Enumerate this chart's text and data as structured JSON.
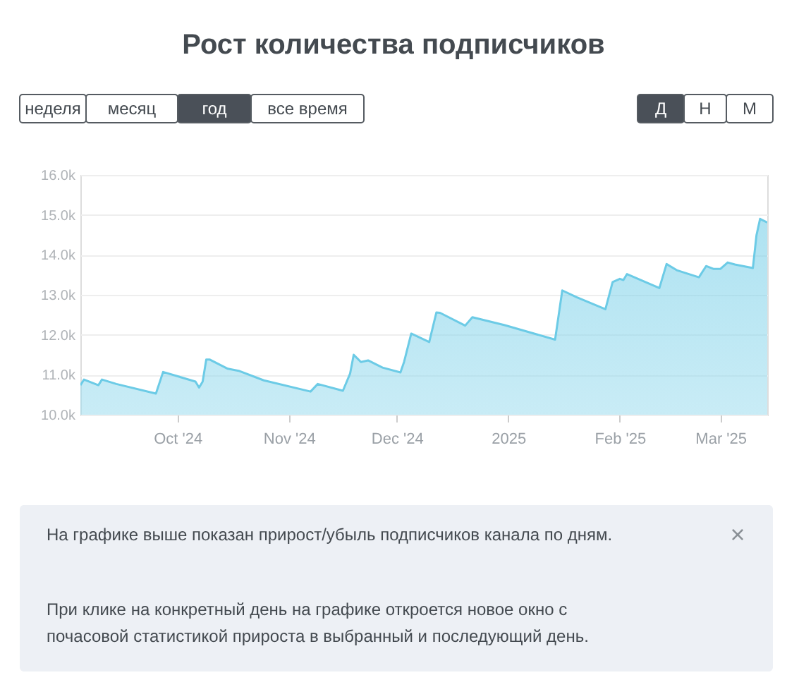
{
  "chart_data": {
    "type": "area",
    "title": "Рост количества подписчиков",
    "x": [
      "2024-09-04",
      "2024-09-05",
      "2024-09-09",
      "2024-09-10",
      "2024-09-14",
      "2024-09-25",
      "2024-09-27",
      "2024-10-06",
      "2024-10-07",
      "2024-10-08",
      "2024-10-09",
      "2024-10-10",
      "2024-10-15",
      "2024-10-18",
      "2024-10-25",
      "2024-11-07",
      "2024-11-09",
      "2024-11-16",
      "2024-11-18",
      "2024-11-19",
      "2024-11-21",
      "2024-11-23",
      "2024-11-27",
      "2024-12-02",
      "2024-12-03",
      "2024-12-05",
      "2024-12-10",
      "2024-12-12",
      "2024-12-13",
      "2024-12-20",
      "2024-12-22",
      "2024-12-31",
      "2025-01-14",
      "2025-01-16",
      "2025-01-20",
      "2025-01-28",
      "2025-01-30",
      "2025-02-01",
      "2025-02-02",
      "2025-02-03",
      "2025-02-12",
      "2025-02-14",
      "2025-02-17",
      "2025-02-23",
      "2025-02-25",
      "2025-02-27",
      "2025-03-01",
      "2025-03-03",
      "2025-03-05",
      "2025-03-10",
      "2025-03-11",
      "2025-03-12",
      "2025-03-14"
    ],
    "series": [
      {
        "color": "#6ccbe6",
        "values": [
          10740,
          10880,
          10740,
          10880,
          10770,
          10530,
          11070,
          10830,
          10680,
          10830,
          11380,
          11380,
          11150,
          11100,
          10860,
          10580,
          10770,
          10600,
          11030,
          11500,
          11320,
          11360,
          11180,
          11060,
          11320,
          12030,
          11820,
          12560,
          12550,
          12230,
          12440,
          12240,
          11880,
          13110,
          12940,
          12640,
          13320,
          13400,
          13370,
          13520,
          13170,
          13770,
          13610,
          13440,
          13720,
          13650,
          13650,
          13810,
          13760,
          13670,
          14490,
          14900,
          14810
        ]
      }
    ],
    "xlim": [
      "2024-09-04",
      "2025-03-14"
    ],
    "xticks": [
      {
        "value": "2024-10-01",
        "label": "Oct '24"
      },
      {
        "value": "2024-11-01",
        "label": "Nov '24"
      },
      {
        "value": "2024-12-01",
        "label": "Dec '24"
      },
      {
        "value": "2025-01-01",
        "label": "2025"
      },
      {
        "value": "2025-02-01",
        "label": "Feb '25"
      },
      {
        "value": "2025-03-01",
        "label": "Mar '25"
      }
    ],
    "ylim": [
      10000,
      16000
    ],
    "yticks": [
      {
        "value": 10000,
        "label": "10.0k"
      },
      {
        "value": 11000,
        "label": "11.0k"
      },
      {
        "value": 12000,
        "label": "12.0k"
      },
      {
        "value": 13000,
        "label": "13.0k"
      },
      {
        "value": 14000,
        "label": "14.0k"
      },
      {
        "value": 15000,
        "label": "15.0k"
      },
      {
        "value": 16000,
        "label": "16.0k"
      }
    ],
    "grid": "y",
    "annotations": [
      "неделя",
      "месяц",
      "год",
      "все время",
      "Д",
      "Н",
      "М",
      "На графике выше показан прирост/убыль подписчиков канала по дням.",
      "При клике на конкретный день на графике откроется новое окно с",
      "почасовой статистикой прироста в выбранный и последующий день.",
      "×"
    ]
  }
}
